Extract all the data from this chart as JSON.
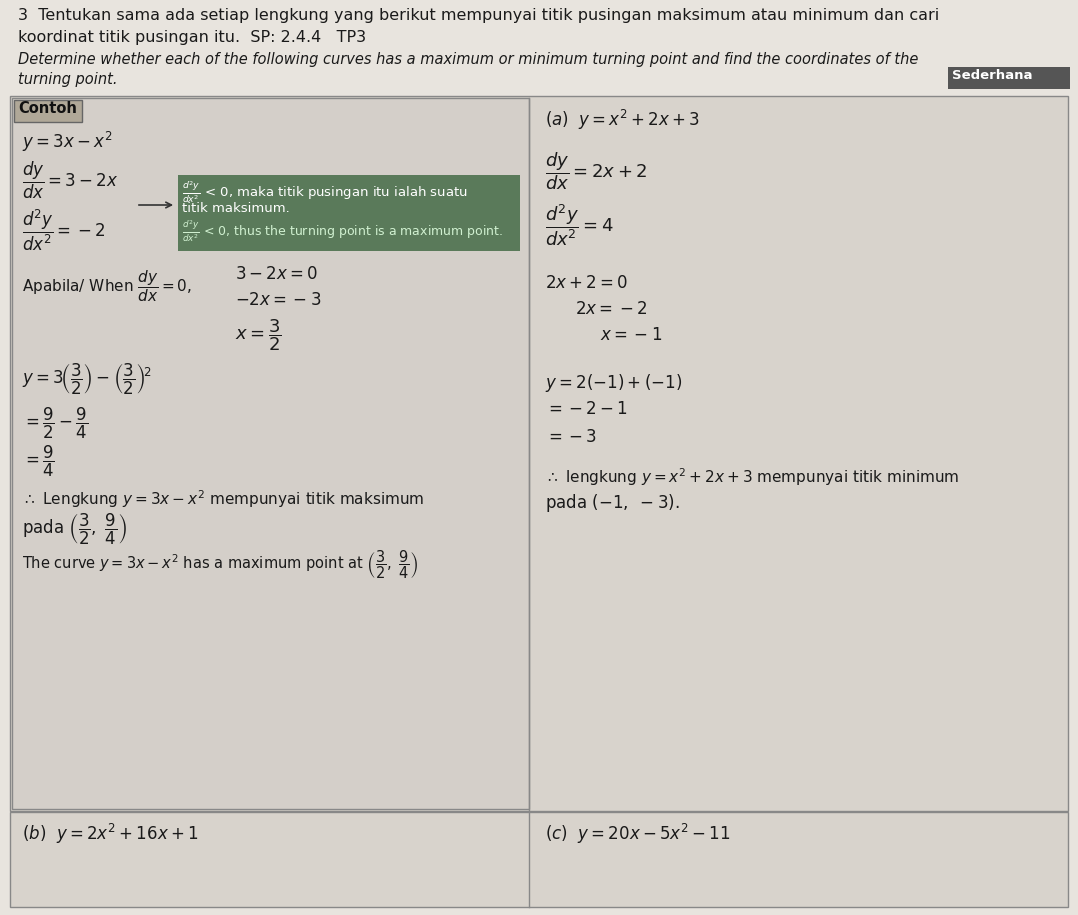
{
  "page_bg": "#e8e4de",
  "header_text_line1": "3  Tentukan sama ada setiap lengkung yang berikut mempunyai titik pusingan maksimum atau minimum dan cari",
  "header_text_line2": "koordinat titik pusingan itu.  SP: 2.4.4   TP3",
  "header_text_line3": "Determine whether each of the following curves has a maximum or minimum turning point and find the coordinates of the",
  "header_text_line4": "turning point.",
  "sederhana_label": "Sederhana",
  "contoh_box_bg": "#b0a898",
  "contoh_label": "Contoh",
  "highlight_box_bg": "#5a7a5a",
  "bottom_left_label": "(b)  $y = 2x^2 + 16x + 1$",
  "bottom_right_label": "(c)  $y = 20x - 5x^2 - 11$"
}
